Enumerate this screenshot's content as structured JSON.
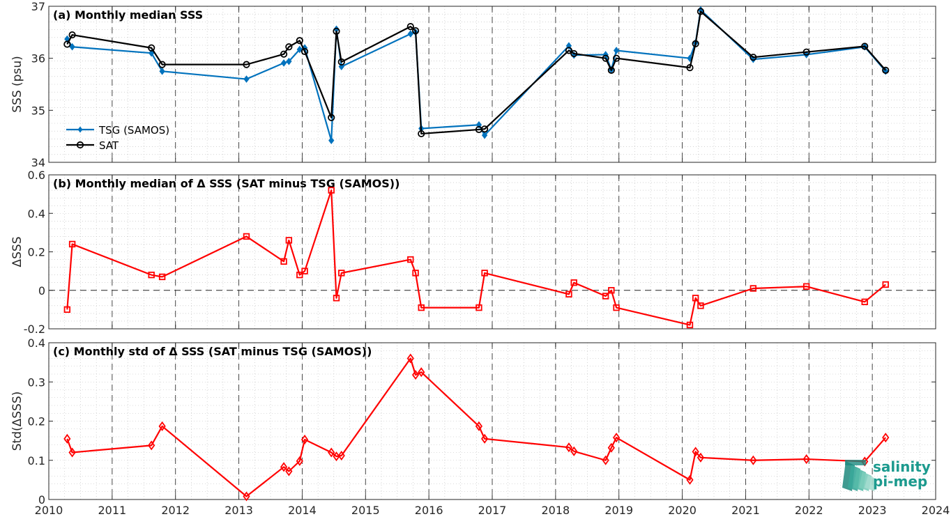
{
  "chart_data": [
    {
      "id": "a",
      "type": "line",
      "title": "(a) Monthly median SSS",
      "ylabel": "SSS (psu)",
      "xlim": [
        2010,
        2024
      ],
      "ylim": [
        34,
        37
      ],
      "yticks": [
        34,
        35,
        36,
        37
      ],
      "grid": true,
      "legend_position": "bottom-left",
      "series": [
        {
          "name": "TSG (SAMOS)",
          "color": "#0072BD",
          "marker": "diamond-filled",
          "points": [
            [
              2010.29,
              36.37
            ],
            [
              2010.37,
              36.22
            ],
            [
              2011.62,
              36.1
            ],
            [
              2011.79,
              35.75
            ],
            [
              2013.12,
              35.6
            ],
            [
              2013.71,
              35.91
            ],
            [
              2013.79,
              35.94
            ],
            [
              2013.96,
              36.17
            ],
            [
              2014.04,
              36.2
            ],
            [
              2014.46,
              34.42
            ],
            [
              2014.54,
              36.56
            ],
            [
              2014.62,
              35.84
            ],
            [
              2015.71,
              36.47
            ],
            [
              2015.79,
              36.5
            ],
            [
              2015.88,
              34.65
            ],
            [
              2016.79,
              34.72
            ],
            [
              2016.88,
              34.52
            ],
            [
              2018.21,
              36.24
            ],
            [
              2018.29,
              36.06
            ],
            [
              2018.79,
              36.07
            ],
            [
              2018.88,
              35.78
            ],
            [
              2018.96,
              36.15
            ],
            [
              2020.12,
              36.0
            ],
            [
              2020.21,
              36.3
            ],
            [
              2020.29,
              36.93
            ],
            [
              2021.12,
              35.98
            ],
            [
              2021.96,
              36.07
            ],
            [
              2022.88,
              36.22
            ],
            [
              2023.21,
              35.75
            ]
          ]
        },
        {
          "name": "SAT",
          "color": "#000000",
          "marker": "circle-open",
          "points": [
            [
              2010.29,
              36.27
            ],
            [
              2010.37,
              36.45
            ],
            [
              2011.62,
              36.2
            ],
            [
              2011.79,
              35.88
            ],
            [
              2013.12,
              35.88
            ],
            [
              2013.71,
              36.08
            ],
            [
              2013.79,
              36.22
            ],
            [
              2013.96,
              36.34
            ],
            [
              2014.04,
              36.13
            ],
            [
              2014.46,
              34.86
            ],
            [
              2014.54,
              36.52
            ],
            [
              2014.62,
              35.93
            ],
            [
              2015.71,
              36.61
            ],
            [
              2015.79,
              36.53
            ],
            [
              2015.88,
              34.55
            ],
            [
              2016.79,
              34.63
            ],
            [
              2016.88,
              34.64
            ],
            [
              2018.21,
              36.15
            ],
            [
              2018.29,
              36.09
            ],
            [
              2018.79,
              36.0
            ],
            [
              2018.88,
              35.77
            ],
            [
              2018.96,
              36.0
            ],
            [
              2020.12,
              35.82
            ],
            [
              2020.21,
              36.28
            ],
            [
              2020.29,
              36.9
            ],
            [
              2021.12,
              36.02
            ],
            [
              2021.96,
              36.12
            ],
            [
              2022.88,
              36.23
            ],
            [
              2023.21,
              35.77
            ]
          ]
        }
      ]
    },
    {
      "id": "b",
      "type": "line",
      "title": "(b) Monthly median of Δ SSS (SAT minus TSG (SAMOS))",
      "ylabel": "ΔSSS",
      "xlim": [
        2010,
        2024
      ],
      "ylim": [
        -0.2,
        0.6
      ],
      "yticks": [
        -0.2,
        0,
        0.2,
        0.4,
        0.6
      ],
      "ytick_labels": [
        "-0.2",
        "0",
        "0.2",
        "0.4",
        "0.6"
      ],
      "grid": true,
      "zero_line": true,
      "series": [
        {
          "color": "#FF0000",
          "marker": "square-open",
          "points": [
            [
              2010.29,
              -0.1
            ],
            [
              2010.37,
              0.24
            ],
            [
              2011.62,
              0.08
            ],
            [
              2011.79,
              0.07
            ],
            [
              2013.12,
              0.28
            ],
            [
              2013.71,
              0.15
            ],
            [
              2013.79,
              0.26
            ],
            [
              2013.96,
              0.08
            ],
            [
              2014.04,
              0.1
            ],
            [
              2014.46,
              0.52
            ],
            [
              2014.54,
              -0.04
            ],
            [
              2014.62,
              0.09
            ],
            [
              2015.71,
              0.16
            ],
            [
              2015.79,
              0.09
            ],
            [
              2015.88,
              -0.09
            ],
            [
              2016.79,
              -0.09
            ],
            [
              2016.88,
              0.09
            ],
            [
              2018.21,
              -0.02
            ],
            [
              2018.29,
              0.04
            ],
            [
              2018.79,
              -0.03
            ],
            [
              2018.88,
              0.0
            ],
            [
              2018.96,
              -0.09
            ],
            [
              2020.12,
              -0.18
            ],
            [
              2020.21,
              -0.04
            ],
            [
              2020.29,
              -0.08
            ],
            [
              2021.12,
              0.01
            ],
            [
              2021.96,
              0.02
            ],
            [
              2022.88,
              -0.06
            ],
            [
              2023.21,
              0.03
            ]
          ]
        }
      ]
    },
    {
      "id": "c",
      "type": "line",
      "title": "(c) Monthly std of Δ SSS (SAT minus TSG (SAMOS))",
      "ylabel": "Std(ΔSSS)",
      "xlim": [
        2010,
        2024
      ],
      "ylim": [
        0,
        0.4
      ],
      "yticks": [
        0,
        0.1,
        0.2,
        0.3,
        0.4
      ],
      "ytick_labels": [
        "0",
        "0.1",
        "0.2",
        "0.3",
        "0.4"
      ],
      "grid": true,
      "xticks": [
        2010,
        2011,
        2012,
        2013,
        2014,
        2015,
        2016,
        2017,
        2018,
        2019,
        2020,
        2021,
        2022,
        2023,
        2024
      ],
      "series": [
        {
          "color": "#FF0000",
          "marker": "diamond-open",
          "points": [
            [
              2010.29,
              0.155
            ],
            [
              2010.37,
              0.12
            ],
            [
              2011.62,
              0.138
            ],
            [
              2011.79,
              0.187
            ],
            [
              2013.12,
              0.008
            ],
            [
              2013.71,
              0.083
            ],
            [
              2013.79,
              0.072
            ],
            [
              2013.96,
              0.098
            ],
            [
              2014.04,
              0.153
            ],
            [
              2014.46,
              0.12
            ],
            [
              2014.54,
              0.11
            ],
            [
              2014.62,
              0.112
            ],
            [
              2015.71,
              0.36
            ],
            [
              2015.79,
              0.318
            ],
            [
              2015.88,
              0.325
            ],
            [
              2016.79,
              0.187
            ],
            [
              2016.88,
              0.155
            ],
            [
              2018.21,
              0.133
            ],
            [
              2018.29,
              0.123
            ],
            [
              2018.79,
              0.1
            ],
            [
              2018.88,
              0.132
            ],
            [
              2018.96,
              0.158
            ],
            [
              2020.12,
              0.05
            ],
            [
              2020.21,
              0.122
            ],
            [
              2020.29,
              0.107
            ],
            [
              2021.12,
              0.1
            ],
            [
              2021.96,
              0.103
            ],
            [
              2022.88,
              0.097
            ],
            [
              2023.21,
              0.158
            ]
          ]
        }
      ]
    }
  ],
  "logo": {
    "line1": "salinity",
    "line2": "pi-mep"
  }
}
